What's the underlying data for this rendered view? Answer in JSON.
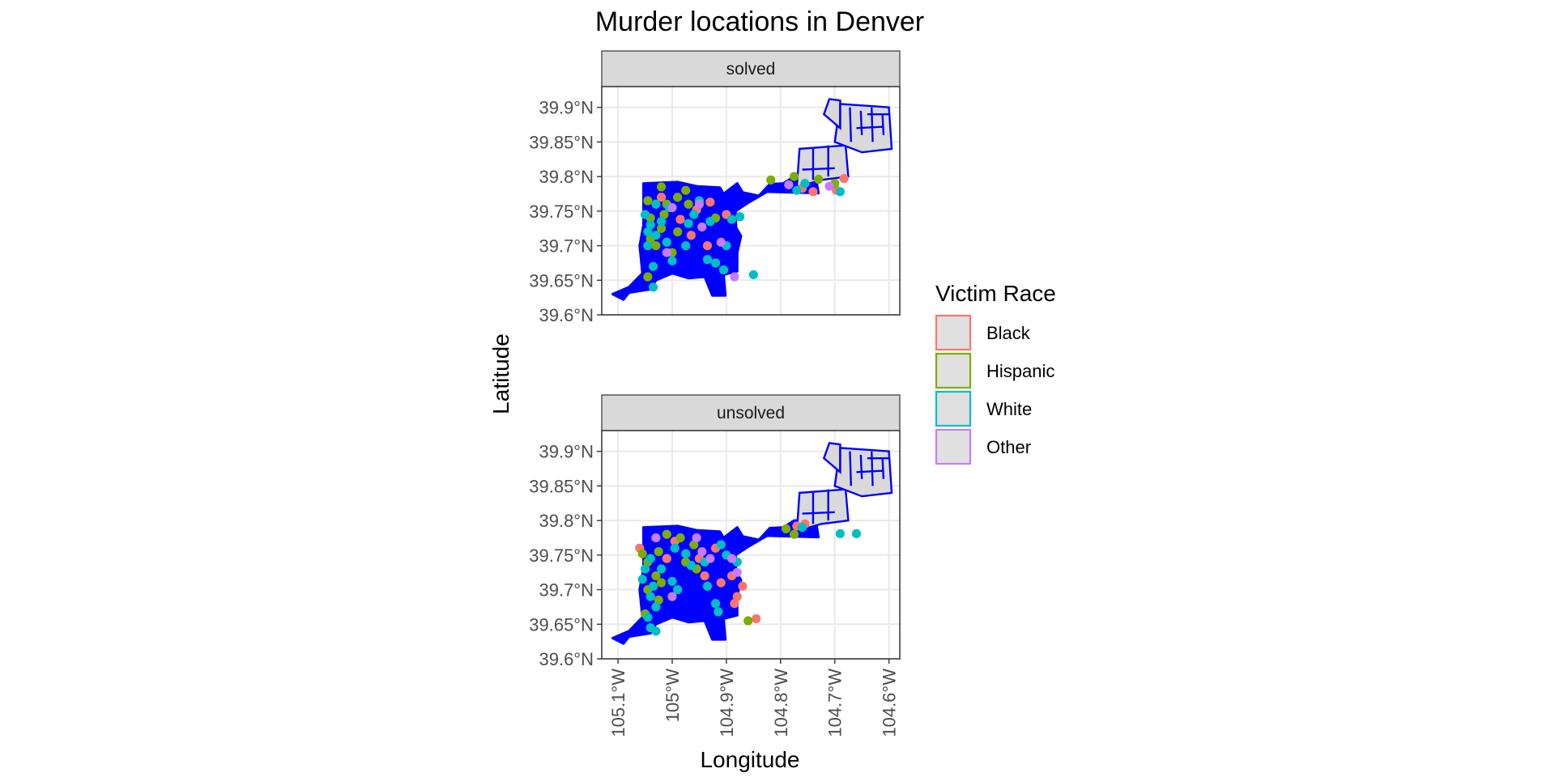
{
  "chart_data": {
    "type": "scatter",
    "title": "Murder locations in Denver",
    "xlabel": "Longitude",
    "ylabel": "Latitude",
    "xlim": [
      -105.13,
      -104.58
    ],
    "ylim": [
      39.6,
      39.93
    ],
    "x_ticks": [
      {
        "value": -105.1,
        "label": "105.1°W"
      },
      {
        "value": -105.0,
        "label": "105°W"
      },
      {
        "value": -104.9,
        "label": "104.9°W"
      },
      {
        "value": -104.8,
        "label": "104.8°W"
      },
      {
        "value": -104.7,
        "label": "104.7°W"
      },
      {
        "value": -104.6,
        "label": "104.6°W"
      }
    ],
    "y_ticks": [
      {
        "value": 39.6,
        "label": "39.6°N"
      },
      {
        "value": 39.65,
        "label": "39.65°N"
      },
      {
        "value": 39.7,
        "label": "39.7°N"
      },
      {
        "value": 39.75,
        "label": "39.75°N"
      },
      {
        "value": 39.8,
        "label": "39.8°N"
      },
      {
        "value": 39.85,
        "label": "39.85°N"
      },
      {
        "value": 39.9,
        "label": "39.9°N"
      }
    ],
    "grid": true,
    "map_outline_color": "#0000ff",
    "map_fill_color": "#d9d9d9",
    "legend": {
      "title": "Victim Race",
      "position": "right",
      "entries": [
        {
          "label": "Black",
          "color": "#F8766D"
        },
        {
          "label": "Hispanic",
          "color": "#7CAE00"
        },
        {
          "label": "White",
          "color": "#00BFC4"
        },
        {
          "label": "Other",
          "color": "#C77CFF"
        }
      ]
    },
    "panels": [
      {
        "label": "solved",
        "points": [
          {
            "x": -104.76,
            "y": 39.783,
            "race": "Black"
          },
          {
            "x": -104.74,
            "y": 39.778,
            "race": "Black"
          },
          {
            "x": -104.683,
            "y": 39.797,
            "race": "Black"
          },
          {
            "x": -104.697,
            "y": 39.78,
            "race": "Black"
          },
          {
            "x": -104.955,
            "y": 39.752,
            "race": "Black"
          },
          {
            "x": -104.9,
            "y": 39.745,
            "race": "Black"
          },
          {
            "x": -104.965,
            "y": 39.715,
            "race": "Black"
          },
          {
            "x": -104.935,
            "y": 39.7,
            "race": "Black"
          },
          {
            "x": -105.02,
            "y": 39.77,
            "race": "Black"
          },
          {
            "x": -104.93,
            "y": 39.763,
            "race": "Black"
          },
          {
            "x": -104.985,
            "y": 39.738,
            "race": "Black"
          },
          {
            "x": -104.775,
            "y": 39.8,
            "race": "Hispanic"
          },
          {
            "x": -104.73,
            "y": 39.796,
            "race": "Hispanic"
          },
          {
            "x": -104.7,
            "y": 39.79,
            "race": "Hispanic"
          },
          {
            "x": -104.818,
            "y": 39.795,
            "race": "Hispanic"
          },
          {
            "x": -105.02,
            "y": 39.785,
            "race": "Hispanic"
          },
          {
            "x": -104.975,
            "y": 39.78,
            "race": "Hispanic"
          },
          {
            "x": -105.045,
            "y": 39.765,
            "race": "Hispanic"
          },
          {
            "x": -105.01,
            "y": 39.76,
            "race": "Hispanic"
          },
          {
            "x": -105.04,
            "y": 39.74,
            "race": "Hispanic"
          },
          {
            "x": -105.02,
            "y": 39.725,
            "race": "Hispanic"
          },
          {
            "x": -104.99,
            "y": 39.72,
            "race": "Hispanic"
          },
          {
            "x": -105.04,
            "y": 39.71,
            "race": "Hispanic"
          },
          {
            "x": -105.03,
            "y": 39.7,
            "race": "Hispanic"
          },
          {
            "x": -105.0,
            "y": 39.69,
            "race": "Hispanic"
          },
          {
            "x": -105.045,
            "y": 39.655,
            "race": "Hispanic"
          },
          {
            "x": -104.97,
            "y": 39.76,
            "race": "Hispanic"
          },
          {
            "x": -104.92,
            "y": 39.74,
            "race": "Hispanic"
          },
          {
            "x": -105.015,
            "y": 39.745,
            "race": "Hispanic"
          },
          {
            "x": -104.99,
            "y": 39.77,
            "race": "Hispanic"
          },
          {
            "x": -104.755,
            "y": 39.79,
            "race": "White"
          },
          {
            "x": -104.69,
            "y": 39.778,
            "race": "White"
          },
          {
            "x": -104.77,
            "y": 39.78,
            "race": "White"
          },
          {
            "x": -105.03,
            "y": 39.76,
            "race": "White"
          },
          {
            "x": -105.005,
            "y": 39.755,
            "race": "White"
          },
          {
            "x": -104.96,
            "y": 39.745,
            "race": "White"
          },
          {
            "x": -104.93,
            "y": 39.735,
            "race": "White"
          },
          {
            "x": -104.89,
            "y": 39.738,
            "race": "White"
          },
          {
            "x": -104.875,
            "y": 39.742,
            "race": "White"
          },
          {
            "x": -105.04,
            "y": 39.73,
            "race": "White"
          },
          {
            "x": -105.045,
            "y": 39.72,
            "race": "White"
          },
          {
            "x": -105.03,
            "y": 39.715,
            "race": "White"
          },
          {
            "x": -105.045,
            "y": 39.7,
            "race": "White"
          },
          {
            "x": -105.01,
            "y": 39.705,
            "race": "White"
          },
          {
            "x": -104.975,
            "y": 39.7,
            "race": "White"
          },
          {
            "x": -104.9,
            "y": 39.7,
            "race": "White"
          },
          {
            "x": -104.92,
            "y": 39.675,
            "race": "White"
          },
          {
            "x": -104.935,
            "y": 39.68,
            "race": "White"
          },
          {
            "x": -105.0,
            "y": 39.678,
            "race": "White"
          },
          {
            "x": -105.035,
            "y": 39.67,
            "race": "White"
          },
          {
            "x": -104.905,
            "y": 39.665,
            "race": "White"
          },
          {
            "x": -104.85,
            "y": 39.658,
            "race": "White"
          },
          {
            "x": -105.035,
            "y": 39.64,
            "race": "White"
          },
          {
            "x": -104.97,
            "y": 39.732,
            "race": "White"
          },
          {
            "x": -105.05,
            "y": 39.745,
            "race": "White"
          },
          {
            "x": -105.02,
            "y": 39.735,
            "race": "White"
          },
          {
            "x": -104.95,
            "y": 39.765,
            "race": "White"
          },
          {
            "x": -104.785,
            "y": 39.788,
            "race": "Other"
          },
          {
            "x": -104.71,
            "y": 39.786,
            "race": "Other"
          },
          {
            "x": -104.95,
            "y": 39.76,
            "race": "Other"
          },
          {
            "x": -105.0,
            "y": 39.755,
            "race": "Other"
          },
          {
            "x": -104.945,
            "y": 39.727,
            "race": "Other"
          },
          {
            "x": -104.91,
            "y": 39.705,
            "race": "Other"
          },
          {
            "x": -105.01,
            "y": 39.69,
            "race": "Other"
          },
          {
            "x": -104.885,
            "y": 39.655,
            "race": "Other"
          }
        ]
      },
      {
        "label": "unsolved",
        "points": [
          {
            "x": -105.06,
            "y": 39.76,
            "race": "Black"
          },
          {
            "x": -104.92,
            "y": 39.76,
            "race": "Black"
          },
          {
            "x": -104.95,
            "y": 39.745,
            "race": "Black"
          },
          {
            "x": -104.94,
            "y": 39.72,
            "race": "Black"
          },
          {
            "x": -104.91,
            "y": 39.71,
            "race": "Black"
          },
          {
            "x": -104.89,
            "y": 39.72,
            "race": "Black"
          },
          {
            "x": -104.87,
            "y": 39.705,
            "race": "Black"
          },
          {
            "x": -104.88,
            "y": 39.69,
            "race": "Black"
          },
          {
            "x": -104.885,
            "y": 39.68,
            "race": "Black"
          },
          {
            "x": -104.845,
            "y": 39.658,
            "race": "Black"
          },
          {
            "x": -104.77,
            "y": 39.792,
            "race": "Black"
          },
          {
            "x": -104.755,
            "y": 39.795,
            "race": "Black"
          },
          {
            "x": -104.995,
            "y": 39.77,
            "race": "Black"
          },
          {
            "x": -105.01,
            "y": 39.745,
            "race": "Black"
          },
          {
            "x": -105.055,
            "y": 39.752,
            "race": "Hispanic"
          },
          {
            "x": -105.045,
            "y": 39.74,
            "race": "Hispanic"
          },
          {
            "x": -105.025,
            "y": 39.755,
            "race": "Hispanic"
          },
          {
            "x": -105.01,
            "y": 39.78,
            "race": "Hispanic"
          },
          {
            "x": -104.985,
            "y": 39.775,
            "race": "Hispanic"
          },
          {
            "x": -104.96,
            "y": 39.765,
            "race": "Hispanic"
          },
          {
            "x": -105.03,
            "y": 39.72,
            "race": "Hispanic"
          },
          {
            "x": -105.02,
            "y": 39.71,
            "race": "Hispanic"
          },
          {
            "x": -105.045,
            "y": 39.7,
            "race": "Hispanic"
          },
          {
            "x": -105.025,
            "y": 39.685,
            "race": "Hispanic"
          },
          {
            "x": -105.05,
            "y": 39.665,
            "race": "Hispanic"
          },
          {
            "x": -104.79,
            "y": 39.788,
            "race": "Hispanic"
          },
          {
            "x": -104.775,
            "y": 39.78,
            "race": "Hispanic"
          },
          {
            "x": -104.86,
            "y": 39.655,
            "race": "Hispanic"
          },
          {
            "x": -104.975,
            "y": 39.74,
            "race": "Hispanic"
          },
          {
            "x": -104.955,
            "y": 39.73,
            "race": "Hispanic"
          },
          {
            "x": -105.04,
            "y": 39.745,
            "race": "White"
          },
          {
            "x": -105.05,
            "y": 39.73,
            "race": "White"
          },
          {
            "x": -105.055,
            "y": 39.715,
            "race": "White"
          },
          {
            "x": -105.035,
            "y": 39.705,
            "race": "White"
          },
          {
            "x": -105.04,
            "y": 39.69,
            "race": "White"
          },
          {
            "x": -105.03,
            "y": 39.675,
            "race": "White"
          },
          {
            "x": -105.045,
            "y": 39.66,
            "race": "White"
          },
          {
            "x": -105.04,
            "y": 39.645,
            "race": "White"
          },
          {
            "x": -105.03,
            "y": 39.64,
            "race": "White"
          },
          {
            "x": -104.995,
            "y": 39.76,
            "race": "White"
          },
          {
            "x": -104.975,
            "y": 39.752,
            "race": "White"
          },
          {
            "x": -104.965,
            "y": 39.735,
            "race": "White"
          },
          {
            "x": -104.94,
            "y": 39.74,
            "race": "White"
          },
          {
            "x": -104.91,
            "y": 39.765,
            "race": "White"
          },
          {
            "x": -104.9,
            "y": 39.75,
            "race": "White"
          },
          {
            "x": -104.92,
            "y": 39.68,
            "race": "White"
          },
          {
            "x": -104.915,
            "y": 39.668,
            "race": "White"
          },
          {
            "x": -104.99,
            "y": 39.7,
            "race": "White"
          },
          {
            "x": -104.76,
            "y": 39.79,
            "race": "White"
          },
          {
            "x": -104.69,
            "y": 39.781,
            "race": "White"
          },
          {
            "x": -104.66,
            "y": 39.781,
            "race": "White"
          },
          {
            "x": -104.88,
            "y": 39.74,
            "race": "White"
          },
          {
            "x": -105.02,
            "y": 39.73,
            "race": "White"
          },
          {
            "x": -105.0,
            "y": 39.712,
            "race": "White"
          },
          {
            "x": -104.935,
            "y": 39.705,
            "race": "White"
          },
          {
            "x": -105.03,
            "y": 39.775,
            "race": "Other"
          },
          {
            "x": -104.955,
            "y": 39.775,
            "race": "Other"
          },
          {
            "x": -104.945,
            "y": 39.755,
            "race": "Other"
          },
          {
            "x": -104.93,
            "y": 39.745,
            "race": "Other"
          },
          {
            "x": -105.0,
            "y": 39.69,
            "race": "Other"
          },
          {
            "x": -104.88,
            "y": 39.725,
            "race": "Other"
          },
          {
            "x": -104.89,
            "y": 39.745,
            "race": "Other"
          }
        ]
      }
    ]
  }
}
